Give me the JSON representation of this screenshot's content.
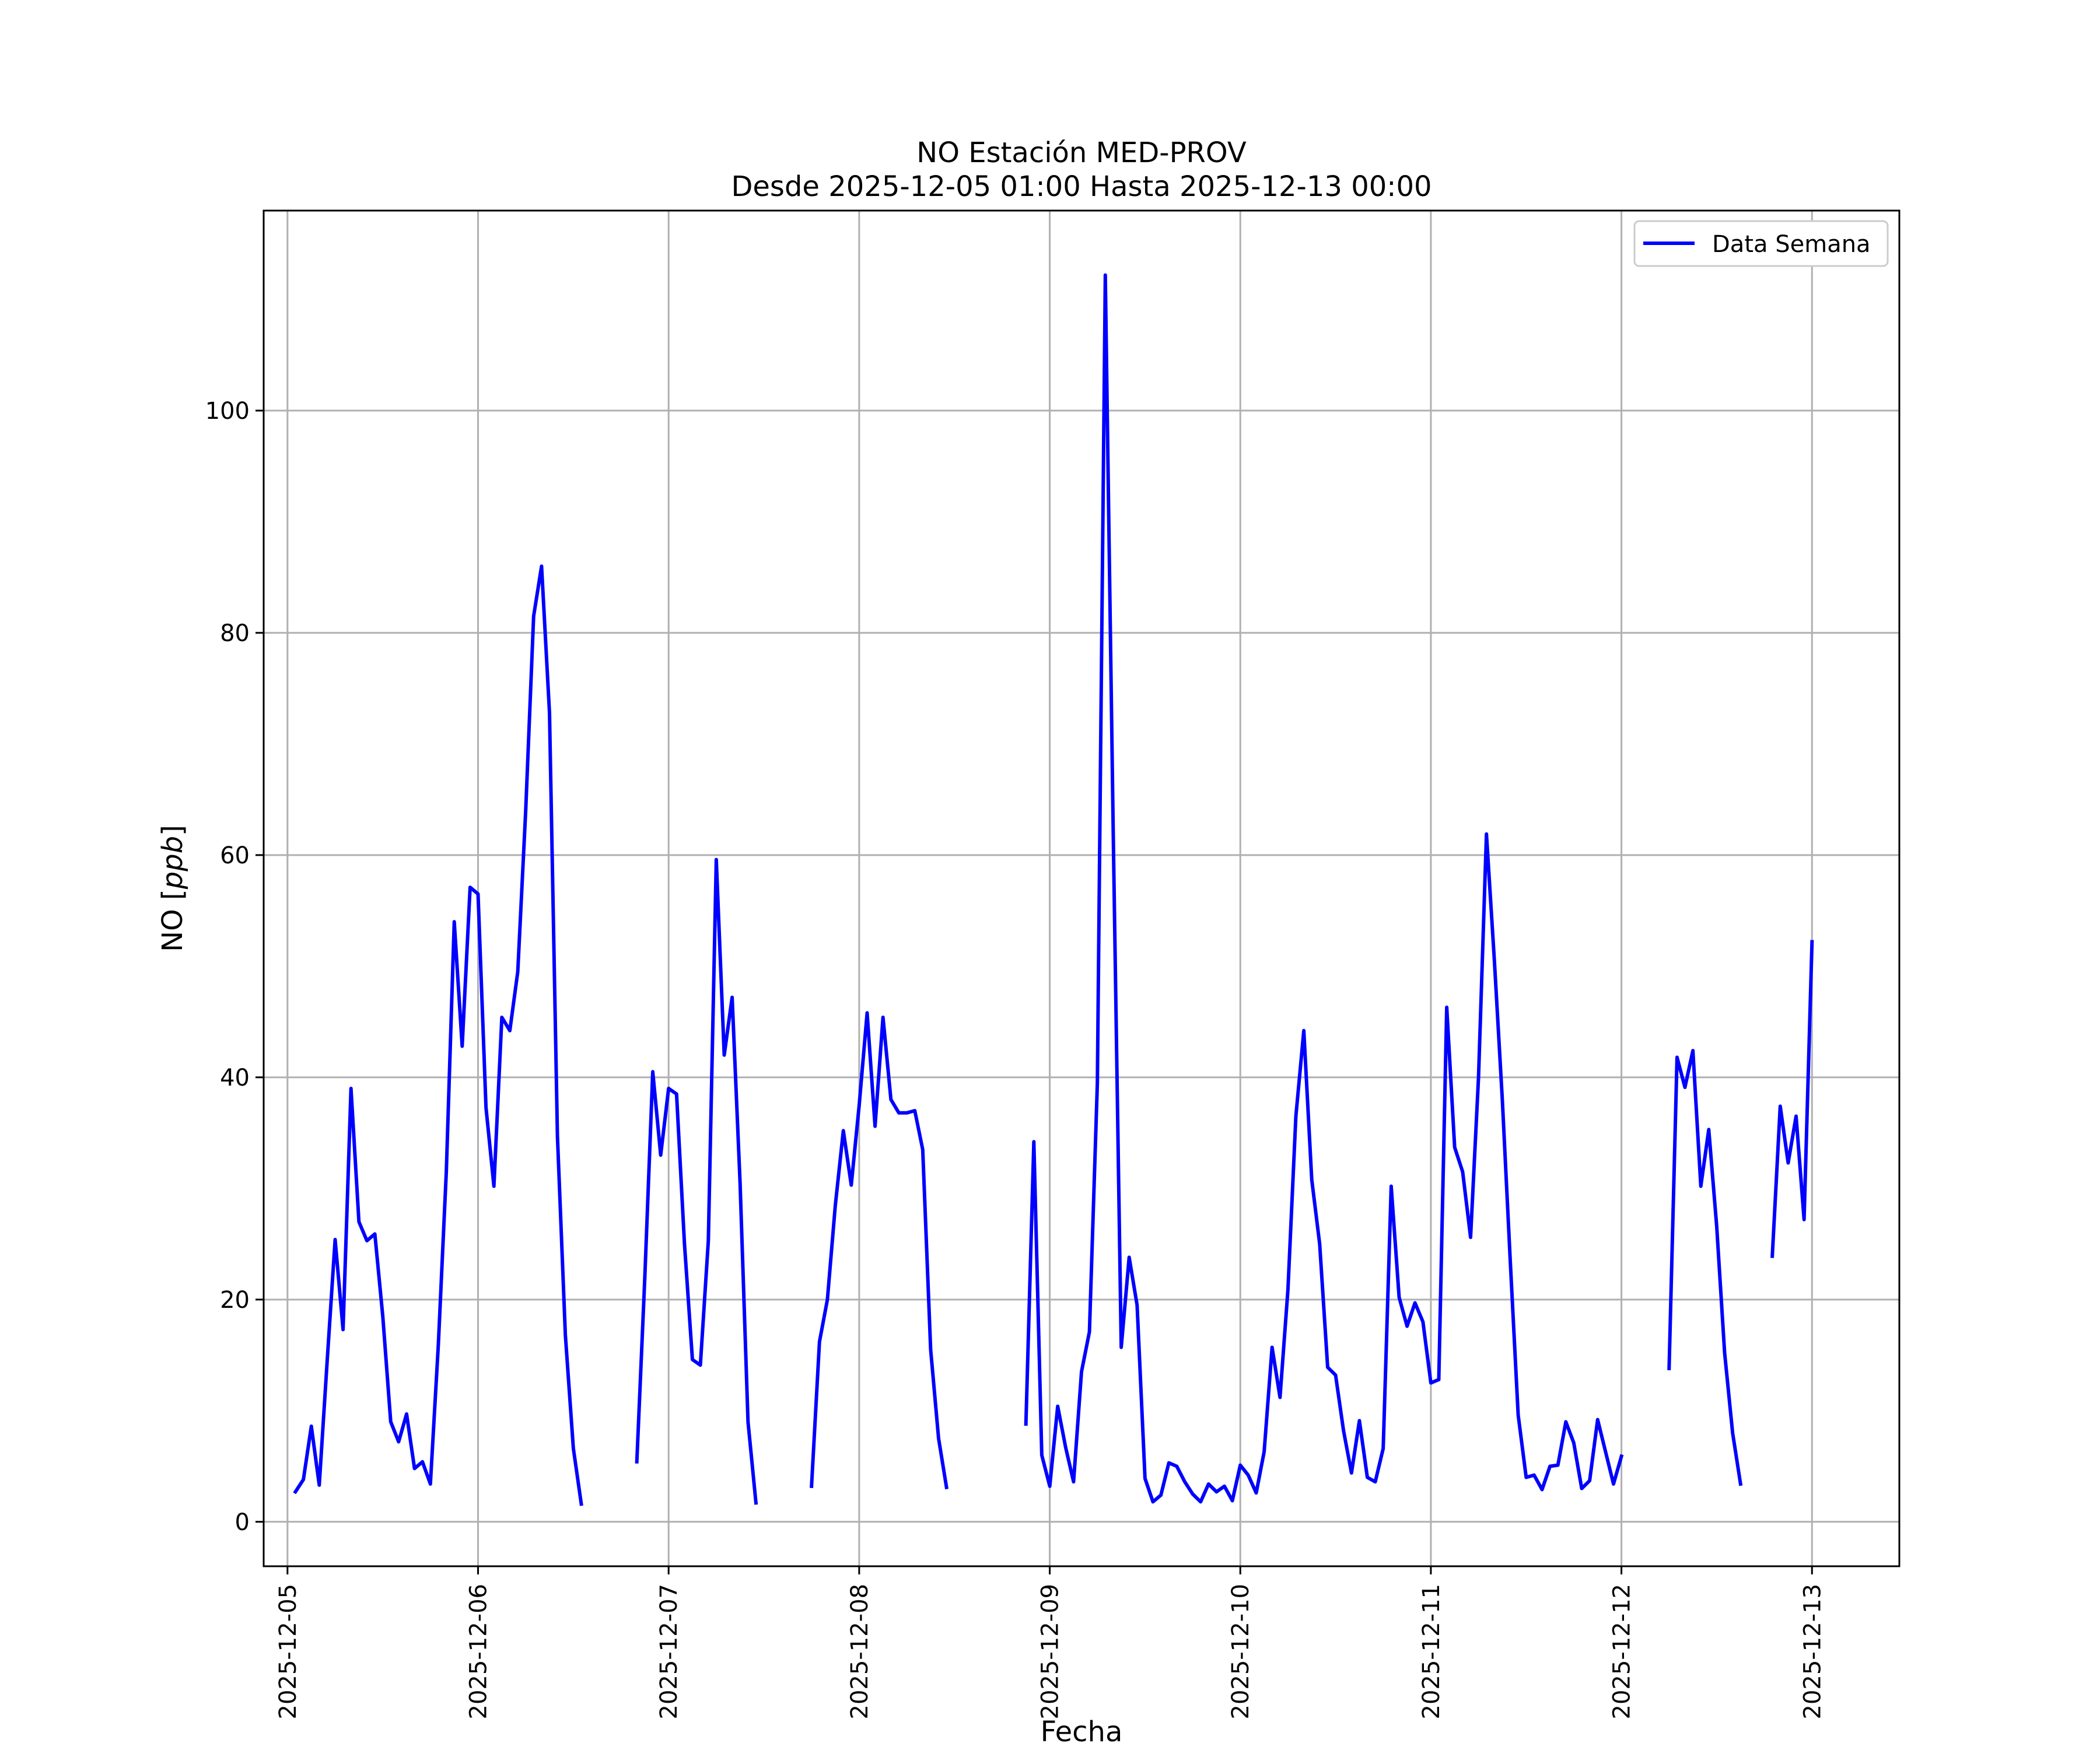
{
  "chart_data": {
    "type": "line",
    "title": "NO Estación MED-PROV",
    "subtitle": "Desde 2025-12-05 01:00 Hasta 2025-12-13 00:00",
    "xlabel": "Fecha",
    "ylabel_prefix": "NO [",
    "ylabel_unit": "ppb",
    "ylabel_suffix": "]",
    "xlim": [
      "2025-12-04 21:00",
      "2025-12-13 11:00"
    ],
    "ylim": [
      -4,
      118
    ],
    "x_ticks": [
      "2025-12-05",
      "2025-12-06",
      "2025-12-07",
      "2025-12-08",
      "2025-12-09",
      "2025-12-10",
      "2025-12-11",
      "2025-12-12",
      "2025-12-13"
    ],
    "y_ticks": [
      0,
      20,
      40,
      60,
      80,
      100
    ],
    "grid": true,
    "legend_position": "upper right",
    "series": [
      {
        "name": "Data Semana",
        "color": "#0000ff",
        "segments": [
          [
            [
              "2025-12-05 01:00",
              2.7
            ],
            [
              "2025-12-05 02:00",
              3.8
            ],
            [
              "2025-12-05 03:00",
              8.6
            ],
            [
              "2025-12-05 04:00",
              3.3
            ],
            [
              "2025-12-05 05:00",
              14.5
            ],
            [
              "2025-12-05 06:00",
              25.4
            ],
            [
              "2025-12-05 07:00",
              17.3
            ],
            [
              "2025-12-05 08:00",
              39.0
            ],
            [
              "2025-12-05 09:00",
              27.0
            ],
            [
              "2025-12-05 10:00",
              25.3
            ],
            [
              "2025-12-05 11:00",
              25.9
            ],
            [
              "2025-12-05 12:00",
              18.5
            ],
            [
              "2025-12-05 13:00",
              9.0
            ],
            [
              "2025-12-05 14:00",
              7.2
            ],
            [
              "2025-12-05 15:00",
              9.7
            ],
            [
              "2025-12-05 16:00",
              4.8
            ],
            [
              "2025-12-05 17:00",
              5.4
            ],
            [
              "2025-12-05 18:00",
              3.4
            ],
            [
              "2025-12-05 19:00",
              16.0
            ],
            [
              "2025-12-05 20:00",
              31.5
            ],
            [
              "2025-12-05 21:00",
              54.0
            ],
            [
              "2025-12-05 22:00",
              42.8
            ],
            [
              "2025-12-05 23:00",
              57.1
            ],
            [
              "2025-12-06 00:00",
              56.5
            ],
            [
              "2025-12-06 01:00",
              37.3
            ],
            [
              "2025-12-06 02:00",
              30.2
            ],
            [
              "2025-12-06 03:00",
              45.4
            ],
            [
              "2025-12-06 04:00",
              44.2
            ],
            [
              "2025-12-06 05:00",
              49.5
            ],
            [
              "2025-12-06 06:00",
              64.0
            ],
            [
              "2025-12-06 07:00",
              81.5
            ],
            [
              "2025-12-06 08:00",
              86.0
            ],
            [
              "2025-12-06 09:00",
              72.8
            ],
            [
              "2025-12-06 10:00",
              34.7
            ],
            [
              "2025-12-06 11:00",
              16.8
            ],
            [
              "2025-12-06 12:00",
              6.6
            ],
            [
              "2025-12-06 13:00",
              1.6
            ]
          ],
          [
            [
              "2025-12-06 20:00",
              5.4
            ],
            [
              "2025-12-06 21:00",
              22.0
            ],
            [
              "2025-12-06 22:00",
              40.5
            ],
            [
              "2025-12-06 23:00",
              33.0
            ],
            [
              "2025-12-07 00:00",
              39.0
            ],
            [
              "2025-12-07 01:00",
              38.5
            ],
            [
              "2025-12-07 02:00",
              25.0
            ],
            [
              "2025-12-07 03:00",
              14.6
            ],
            [
              "2025-12-07 04:00",
              14.1
            ],
            [
              "2025-12-07 05:00",
              25.3
            ],
            [
              "2025-12-07 06:00",
              59.6
            ],
            [
              "2025-12-07 07:00",
              42.0
            ],
            [
              "2025-12-07 08:00",
              47.2
            ],
            [
              "2025-12-07 09:00",
              30.5
            ],
            [
              "2025-12-07 10:00",
              9.0
            ],
            [
              "2025-12-07 11:00",
              1.7
            ]
          ],
          [
            [
              "2025-12-07 18:00",
              3.2
            ],
            [
              "2025-12-07 19:00",
              16.2
            ],
            [
              "2025-12-07 20:00",
              20.0
            ],
            [
              "2025-12-07 21:00",
              28.5
            ],
            [
              "2025-12-07 22:00",
              35.2
            ],
            [
              "2025-12-07 23:00",
              30.3
            ],
            [
              "2025-12-08 00:00",
              37.5
            ],
            [
              "2025-12-08 01:00",
              45.8
            ],
            [
              "2025-12-08 02:00",
              35.6
            ],
            [
              "2025-12-08 03:00",
              45.4
            ],
            [
              "2025-12-08 04:00",
              38.0
            ],
            [
              "2025-12-08 05:00",
              36.8
            ],
            [
              "2025-12-08 06:00",
              36.8
            ],
            [
              "2025-12-08 07:00",
              37.0
            ],
            [
              "2025-12-08 08:00",
              33.5
            ],
            [
              "2025-12-08 09:00",
              15.5
            ],
            [
              "2025-12-08 10:00",
              7.5
            ],
            [
              "2025-12-08 11:00",
              3.1
            ]
          ],
          [
            [
              "2025-12-08 21:00",
              8.8
            ],
            [
              "2025-12-08 22:00",
              34.2
            ],
            [
              "2025-12-08 23:00",
              6.0
            ],
            [
              "2025-12-09 00:00",
              3.2
            ],
            [
              "2025-12-09 01:00",
              10.4
            ],
            [
              "2025-12-09 02:00",
              6.7
            ],
            [
              "2025-12-09 03:00",
              3.6
            ],
            [
              "2025-12-09 04:00",
              13.5
            ],
            [
              "2025-12-09 05:00",
              17.1
            ],
            [
              "2025-12-09 06:00",
              39.5
            ],
            [
              "2025-12-09 07:00",
              112.2
            ],
            [
              "2025-12-09 08:00",
              62.0
            ],
            [
              "2025-12-09 09:00",
              15.7
            ],
            [
              "2025-12-09 10:00",
              23.8
            ],
            [
              "2025-12-09 11:00",
              19.5
            ],
            [
              "2025-12-09 12:00",
              3.9
            ],
            [
              "2025-12-09 13:00",
              1.8
            ],
            [
              "2025-12-09 14:00",
              2.4
            ],
            [
              "2025-12-09 15:00",
              5.3
            ],
            [
              "2025-12-09 16:00",
              5.0
            ],
            [
              "2025-12-09 17:00",
              3.6
            ],
            [
              "2025-12-09 18:00",
              2.5
            ],
            [
              "2025-12-09 19:00",
              1.8
            ],
            [
              "2025-12-09 20:00",
              3.4
            ],
            [
              "2025-12-09 21:00",
              2.7
            ],
            [
              "2025-12-09 22:00",
              3.2
            ],
            [
              "2025-12-09 23:00",
              1.9
            ],
            [
              "2025-12-10 00:00",
              5.1
            ],
            [
              "2025-12-10 01:00",
              4.2
            ],
            [
              "2025-12-10 02:00",
              2.6
            ],
            [
              "2025-12-10 03:00",
              6.3
            ],
            [
              "2025-12-10 04:00",
              15.7
            ],
            [
              "2025-12-10 05:00",
              11.2
            ],
            [
              "2025-12-10 06:00",
              20.9
            ],
            [
              "2025-12-10 07:00",
              36.5
            ],
            [
              "2025-12-10 08:00",
              44.2
            ],
            [
              "2025-12-10 09:00",
              30.8
            ],
            [
              "2025-12-10 10:00",
              25.0
            ],
            [
              "2025-12-10 11:00",
              13.9
            ],
            [
              "2025-12-10 12:00",
              13.2
            ],
            [
              "2025-12-10 13:00",
              8.2
            ],
            [
              "2025-12-10 14:00",
              4.4
            ],
            [
              "2025-12-10 15:00",
              9.1
            ],
            [
              "2025-12-10 16:00",
              4.0
            ],
            [
              "2025-12-10 17:00",
              3.6
            ],
            [
              "2025-12-10 18:00",
              6.6
            ],
            [
              "2025-12-10 19:00",
              30.2
            ],
            [
              "2025-12-10 20:00",
              20.2
            ],
            [
              "2025-12-10 21:00",
              17.6
            ],
            [
              "2025-12-10 22:00",
              19.7
            ],
            [
              "2025-12-10 23:00",
              18.0
            ],
            [
              "2025-12-11 00:00",
              12.5
            ],
            [
              "2025-12-11 01:00",
              12.8
            ],
            [
              "2025-12-11 02:00",
              46.3
            ],
            [
              "2025-12-11 03:00",
              33.7
            ],
            [
              "2025-12-11 04:00",
              31.5
            ],
            [
              "2025-12-11 05:00",
              25.6
            ],
            [
              "2025-12-11 06:00",
              40.0
            ],
            [
              "2025-12-11 07:00",
              61.9
            ],
            [
              "2025-12-11 08:00",
              50.5
            ],
            [
              "2025-12-11 09:00",
              38.0
            ],
            [
              "2025-12-11 10:00",
              23.5
            ],
            [
              "2025-12-11 11:00",
              9.6
            ],
            [
              "2025-12-11 12:00",
              4.0
            ],
            [
              "2025-12-11 13:00",
              4.2
            ],
            [
              "2025-12-11 14:00",
              2.9
            ],
            [
              "2025-12-11 15:00",
              5.0
            ],
            [
              "2025-12-11 16:00",
              5.1
            ],
            [
              "2025-12-11 17:00",
              9.0
            ],
            [
              "2025-12-11 18:00",
              7.1
            ],
            [
              "2025-12-11 19:00",
              3.0
            ],
            [
              "2025-12-11 20:00",
              3.7
            ],
            [
              "2025-12-11 21:00",
              9.2
            ],
            [
              "2025-12-11 22:00",
              6.3
            ],
            [
              "2025-12-11 23:00",
              3.4
            ],
            [
              "2025-12-12 00:00",
              5.9
            ]
          ],
          [
            [
              "2025-12-12 06:00",
              13.8
            ],
            [
              "2025-12-12 07:00",
              41.8
            ],
            [
              "2025-12-12 08:00",
              39.1
            ],
            [
              "2025-12-12 09:00",
              42.4
            ],
            [
              "2025-12-12 10:00",
              30.2
            ],
            [
              "2025-12-12 11:00",
              35.3
            ],
            [
              "2025-12-12 12:00",
              26.6
            ],
            [
              "2025-12-12 13:00",
              15.2
            ],
            [
              "2025-12-12 14:00",
              8.0
            ],
            [
              "2025-12-12 15:00",
              3.4
            ]
          ],
          [
            [
              "2025-12-12 19:00",
              23.9
            ],
            [
              "2025-12-12 20:00",
              37.4
            ],
            [
              "2025-12-12 21:00",
              32.3
            ],
            [
              "2025-12-12 22:00",
              36.5
            ],
            [
              "2025-12-12 23:00",
              27.2
            ],
            [
              "2025-12-13 00:00",
              52.2
            ]
          ]
        ]
      }
    ]
  }
}
